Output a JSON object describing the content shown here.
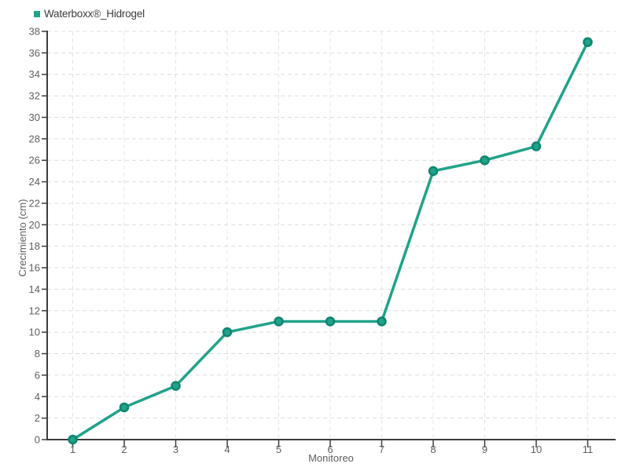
{
  "legend": {
    "position": "top-left",
    "items": [
      {
        "label": "Waterboxx®_Hidrogel",
        "marker": "square",
        "color": "#20a389"
      }
    ]
  },
  "chart_data": {
    "type": "line",
    "title": "",
    "x": [
      1,
      2,
      3,
      4,
      5,
      6,
      7,
      8,
      9,
      10,
      11
    ],
    "x_tick_labels": [
      "1",
      "2",
      "3",
      "4",
      "5",
      "6",
      "7",
      "8",
      "9",
      "10",
      "11"
    ],
    "series": [
      {
        "name": "Waterboxx®_Hidrogel",
        "color": "#20a389",
        "marker": "circle",
        "marker_border": "#0f8571",
        "values": [
          0,
          3,
          5,
          10,
          11,
          11,
          11,
          25,
          26,
          27.3,
          37
        ]
      }
    ],
    "xlabel": "Monitoreo",
    "ylabel": "Crecimiento (cm)",
    "ylim": [
      0,
      38
    ],
    "y_tick_step": 2,
    "xlim": [
      0.5,
      11.55
    ],
    "grid": "dashed-both",
    "legend_position": "top-left",
    "background": "#ffffff"
  },
  "colors": {
    "background": "#ffffff",
    "axis": "#3d3d3d",
    "grid_horizontal": "#dcdcdc",
    "grid_vertical": "#e4e4e4",
    "tick_label": "#5f5f5f",
    "axis_title": "#5f5f5f",
    "legend_text": "#3c3c3c",
    "series_line": "#20a389",
    "marker_fill": "#20a389",
    "marker_border": "#0f8571"
  }
}
